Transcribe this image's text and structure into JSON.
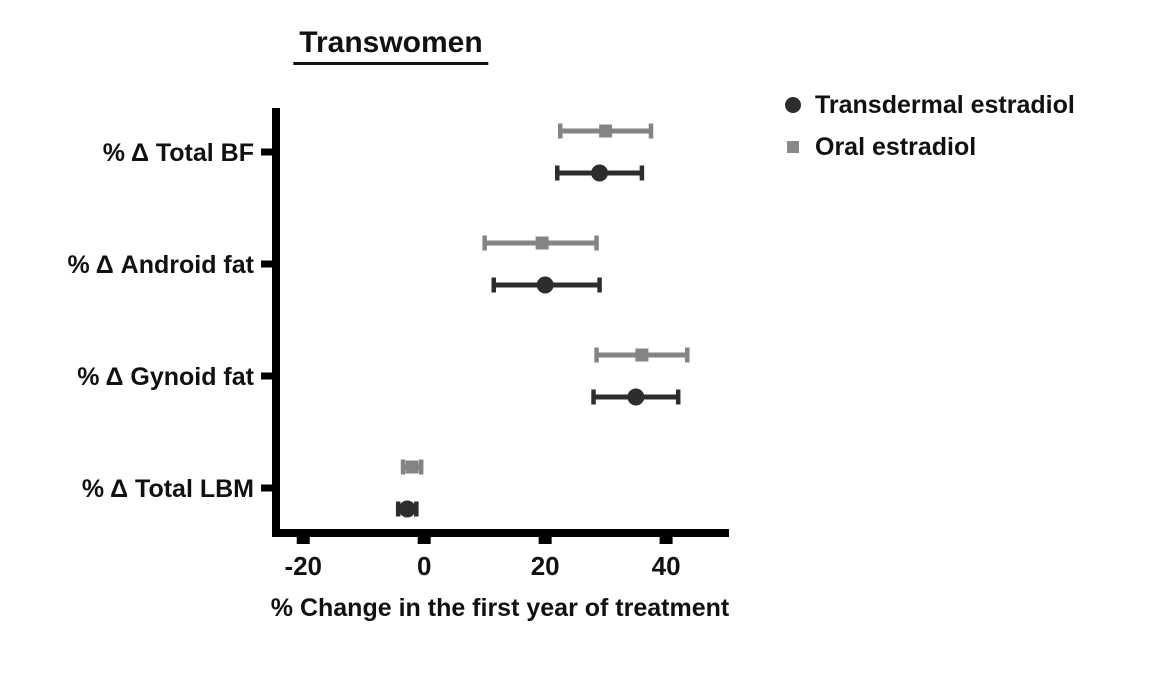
{
  "title": "Transwomen",
  "legend": [
    {
      "name": "Transdermal estradiol",
      "marker": "circle",
      "color": "#2d2d2d"
    },
    {
      "name": "Oral estradiol",
      "marker": "square",
      "color": "#8a8a8a"
    }
  ],
  "chart_data": {
    "type": "scatter",
    "subtype": "horizontal-dot-plot-with-error-bars",
    "title": "Transwomen",
    "xlabel": "% Change in the first year of treatment",
    "categories": [
      "% Δ Total BF",
      "% Δ Android fat",
      "% Δ Gynoid fat",
      "% Δ Total LBM"
    ],
    "xticks": [
      -20,
      0,
      20,
      40
    ],
    "xlim": [
      -25,
      50.4
    ],
    "grid": false,
    "legend_position": "top-right",
    "axis_color": "#000000",
    "series": [
      {
        "name": "Oral estradiol",
        "marker": "square",
        "color": "#848484",
        "position": "above",
        "values": [
          {
            "category": "% Δ Total BF",
            "mean": 30,
            "low": 22.5,
            "high": 37.5
          },
          {
            "category": "% Δ Android fat",
            "mean": 19.5,
            "low": 10,
            "high": 28.5
          },
          {
            "category": "% Δ Gynoid fat",
            "mean": 36,
            "low": 28.5,
            "high": 43.5
          },
          {
            "category": "% Δ Total LBM",
            "mean": -2,
            "low": -3.5,
            "high": -0.5
          }
        ]
      },
      {
        "name": "Transdermal estradiol",
        "marker": "circle",
        "color": "#2d2d2d",
        "position": "below",
        "values": [
          {
            "category": "% Δ Total BF",
            "mean": 29,
            "low": 22,
            "high": 36
          },
          {
            "category": "% Δ Android fat",
            "mean": 20,
            "low": 11.5,
            "high": 29
          },
          {
            "category": "% Δ Gynoid fat",
            "mean": 35,
            "low": 28,
            "high": 42
          },
          {
            "category": "% Δ Total LBM",
            "mean": -2.8,
            "low": -4.3,
            "high": -1.3
          }
        ]
      }
    ]
  }
}
